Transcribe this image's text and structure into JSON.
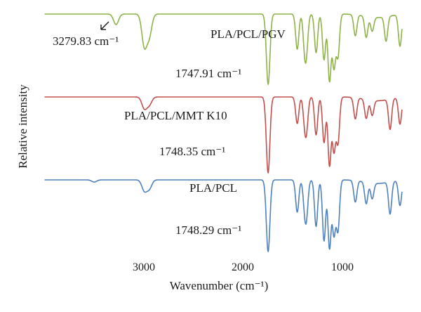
{
  "chart_data": {
    "type": "line",
    "title": "",
    "xlabel": "Wavenumber (cm⁻¹)",
    "ylabel": "Relative intensity",
    "xlim": [
      4000,
      400
    ],
    "x_reversed": true,
    "x_ticks": [
      3000,
      2000,
      1000
    ],
    "grid": false,
    "legend": "none",
    "series": [
      {
        "name": "PLA/PCL/PGV",
        "color": "#8fb24a",
        "peaks_cm": [
          [
            3279.83,
            0.15
          ],
          [
            2995,
            0.45
          ],
          [
            2945,
            0.3
          ],
          [
            1747.91,
            1.0
          ],
          [
            1455,
            0.5
          ],
          [
            1380,
            0.45
          ],
          [
            1360,
            0.4
          ],
          [
            1265,
            0.55
          ],
          [
            1185,
            0.65
          ],
          [
            1130,
            0.95
          ],
          [
            1085,
            0.75
          ],
          [
            1045,
            0.6
          ],
          [
            870,
            0.3
          ],
          [
            760,
            0.3
          ],
          [
            700,
            0.2
          ],
          [
            560,
            0.35
          ],
          [
            420,
            0.45
          ]
        ]
      },
      {
        "name": "PLA/PCL/MMT K10",
        "color": "#c0504d",
        "peaks_cm": [
          [
            2995,
            0.15
          ],
          [
            2945,
            0.1
          ],
          [
            1748.35,
            1.0
          ],
          [
            1455,
            0.35
          ],
          [
            1380,
            0.3
          ],
          [
            1360,
            0.35
          ],
          [
            1265,
            0.5
          ],
          [
            1185,
            0.6
          ],
          [
            1130,
            0.9
          ],
          [
            1085,
            0.7
          ],
          [
            1045,
            0.6
          ],
          [
            870,
            0.28
          ],
          [
            760,
            0.25
          ],
          [
            700,
            0.2
          ],
          [
            520,
            0.4
          ],
          [
            420,
            0.35
          ]
        ]
      },
      {
        "name": "PLA/PCL",
        "color": "#4f81bd",
        "peaks_cm": [
          [
            3500,
            0.03
          ],
          [
            2995,
            0.15
          ],
          [
            2945,
            0.12
          ],
          [
            1748.29,
            1.0
          ],
          [
            1455,
            0.45
          ],
          [
            1380,
            0.35
          ],
          [
            1360,
            0.4
          ],
          [
            1265,
            0.65
          ],
          [
            1185,
            0.85
          ],
          [
            1130,
            0.95
          ],
          [
            1085,
            0.75
          ],
          [
            1045,
            0.7
          ],
          [
            870,
            0.3
          ],
          [
            760,
            0.3
          ],
          [
            700,
            0.22
          ],
          [
            520,
            0.45
          ],
          [
            420,
            0.35
          ]
        ]
      }
    ],
    "annotations": [
      {
        "id": "pgv_oh",
        "text": "3279.83 cm⁻¹",
        "x": 3279.83
      },
      {
        "id": "pgv_co",
        "text": "1747.91 cm⁻¹",
        "x": 1747.91
      },
      {
        "id": "mmt_co",
        "text": "1748.35 cm⁻¹",
        "x": 1748.35
      },
      {
        "id": "pcl_co",
        "text": "1748.29 cm⁻¹",
        "x": 1748.29
      }
    ]
  }
}
